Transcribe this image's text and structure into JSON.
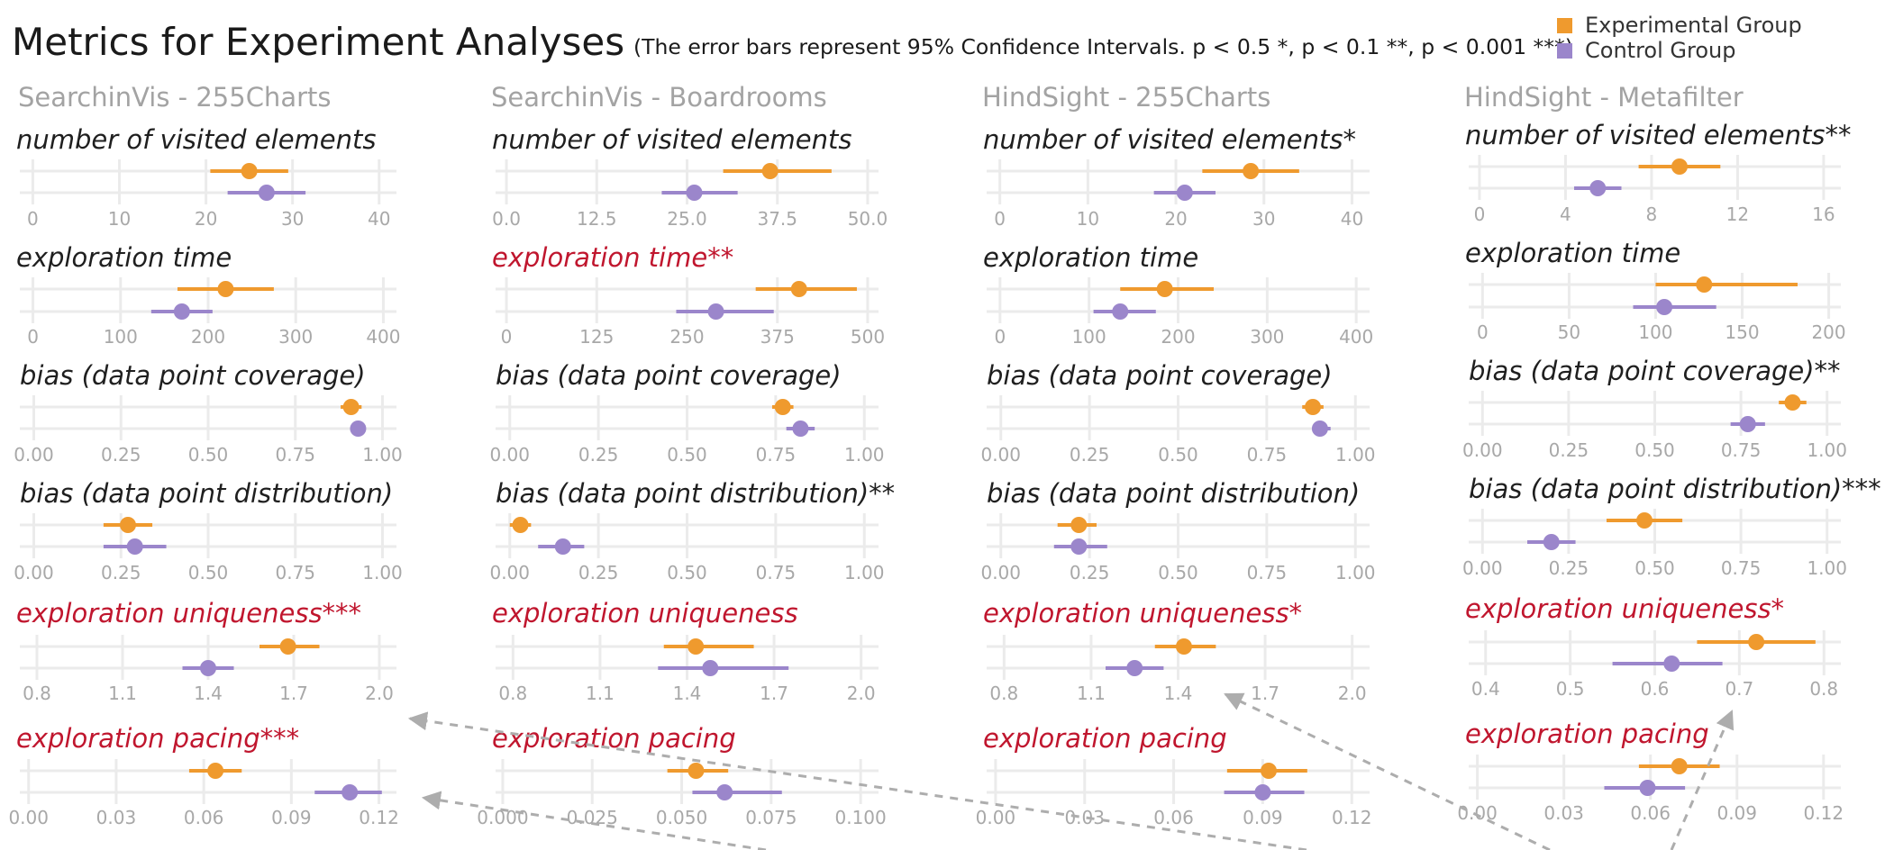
{
  "title": "Metrics for Experiment Analyses",
  "subtitle": "(The error bars represent 95% Confidence Intervals. p < 0.5 *, p < 0.1 **, p < 0.001 ***)",
  "legend": [
    {
      "label": "Experimental Group",
      "color": "#ef9a2e"
    },
    {
      "label": "Control Group",
      "color": "#9b86cb"
    }
  ],
  "colors": {
    "experimental": "#ef9a2e",
    "control": "#9b86cb",
    "highlight_title": "#c0162e",
    "default_title": "#1f1f1f",
    "grid": "#ebebeb",
    "arrow": "#adadad"
  },
  "chart_data": [
    {
      "panel": "SearchinVis - 255Charts",
      "type": "interval",
      "metrics": [
        {
          "title": "number of visited elements",
          "highlight": false,
          "ticks": [
            0,
            10,
            20,
            30,
            40
          ],
          "tick_labels": [
            "0",
            "10",
            "20",
            "30",
            "40"
          ],
          "xlim": [
            -1.5,
            42
          ],
          "experimental": {
            "mean": 25,
            "ci": [
              20.5,
              29.5
            ]
          },
          "control": {
            "mean": 27,
            "ci": [
              22.5,
              31.5
            ]
          }
        },
        {
          "title": "exploration time",
          "highlight": false,
          "ticks": [
            0,
            100,
            200,
            300,
            400
          ],
          "tick_labels": [
            "0",
            "100",
            "200",
            "300",
            "400"
          ],
          "xlim": [
            -15,
            415
          ],
          "experimental": {
            "mean": 220,
            "ci": [
              165,
              275
            ]
          },
          "control": {
            "mean": 170,
            "ci": [
              135,
              205
            ]
          }
        },
        {
          "title": "bias (data  point coverage)",
          "highlight": false,
          "ticks": [
            0,
            0.25,
            0.5,
            0.75,
            1
          ],
          "tick_labels": [
            "0.00",
            "0.25",
            "0.50",
            "0.75",
            "1.00"
          ],
          "xlim": [
            -0.04,
            1.04
          ],
          "experimental": {
            "mean": 0.91,
            "ci": [
              0.88,
              0.94
            ]
          },
          "control": {
            "mean": 0.93,
            "ci": [
              0.91,
              0.95
            ]
          }
        },
        {
          "title": "bias (data point distribution)",
          "highlight": false,
          "ticks": [
            0,
            0.25,
            0.5,
            0.75,
            1
          ],
          "tick_labels": [
            "0.00",
            "0.25",
            "0.50",
            "0.75",
            "1.00"
          ],
          "xlim": [
            -0.04,
            1.04
          ],
          "experimental": {
            "mean": 0.27,
            "ci": [
              0.2,
              0.34
            ]
          },
          "control": {
            "mean": 0.29,
            "ci": [
              0.2,
              0.38
            ]
          }
        },
        {
          "title": "exploration uniqueness***",
          "highlight": true,
          "ticks": [
            0.8,
            1.1,
            1.4,
            1.7,
            2.0
          ],
          "tick_labels": [
            "0.8",
            "1.1",
            "1.4",
            "1.7",
            "2.0"
          ],
          "xlim": [
            0.74,
            2.06
          ],
          "experimental": {
            "mean": 1.68,
            "ci": [
              1.58,
              1.79
            ]
          },
          "control": {
            "mean": 1.4,
            "ci": [
              1.31,
              1.49
            ]
          }
        },
        {
          "title": "exploration pacing***",
          "highlight": true,
          "ticks": [
            0,
            0.03,
            0.06,
            0.09,
            0.12
          ],
          "tick_labels": [
            "0.00",
            "0.03",
            "0.06",
            "0.09",
            "0.12"
          ],
          "xlim": [
            -0.003,
            0.126
          ],
          "experimental": {
            "mean": 0.064,
            "ci": [
              0.055,
              0.073
            ]
          },
          "control": {
            "mean": 0.11,
            "ci": [
              0.098,
              0.121
            ]
          }
        }
      ]
    },
    {
      "panel": "SearchinVis - Boardrooms",
      "type": "interval",
      "metrics": [
        {
          "title": "number of visited elements",
          "highlight": false,
          "ticks": [
            0,
            12.5,
            25,
            37.5,
            50
          ],
          "tick_labels": [
            "0.0",
            "12.5",
            "25.0",
            "37.5",
            "50.0"
          ],
          "xlim": [
            -1.5,
            51.5
          ],
          "experimental": {
            "mean": 36.5,
            "ci": [
              30,
              45
            ]
          },
          "control": {
            "mean": 26,
            "ci": [
              21.5,
              32
            ]
          }
        },
        {
          "title": "exploration time**",
          "highlight": true,
          "ticks": [
            0,
            125,
            250,
            375,
            500
          ],
          "tick_labels": [
            "0",
            "125",
            "250",
            "375",
            "500"
          ],
          "xlim": [
            -15,
            515
          ],
          "experimental": {
            "mean": 405,
            "ci": [
              345,
              485
            ]
          },
          "control": {
            "mean": 290,
            "ci": [
              235,
              370
            ]
          }
        },
        {
          "title": "bias (data point coverage)",
          "highlight": false,
          "ticks": [
            0,
            0.25,
            0.5,
            0.75,
            1
          ],
          "tick_labels": [
            "0.00",
            "0.25",
            "0.50",
            "0.75",
            "1.00"
          ],
          "xlim": [
            -0.04,
            1.04
          ],
          "experimental": {
            "mean": 0.77,
            "ci": [
              0.74,
              0.8
            ]
          },
          "control": {
            "mean": 0.82,
            "ci": [
              0.78,
              0.86
            ]
          }
        },
        {
          "title": "bias (data point distribution)**",
          "highlight": false,
          "ticks": [
            0,
            0.25,
            0.5,
            0.75,
            1
          ],
          "tick_labels": [
            "0.00",
            "0.25",
            "0.50",
            "0.75",
            "1.00"
          ],
          "xlim": [
            -0.04,
            1.04
          ],
          "experimental": {
            "mean": 0.03,
            "ci": [
              0,
              0.06
            ]
          },
          "control": {
            "mean": 0.15,
            "ci": [
              0.08,
              0.21
            ]
          }
        },
        {
          "title": "exploration uniqueness",
          "highlight": true,
          "ticks": [
            0.8,
            1.1,
            1.4,
            1.7,
            2.0
          ],
          "tick_labels": [
            "0.8",
            "1.1",
            "1.4",
            "1.7",
            "2.0"
          ],
          "xlim": [
            0.74,
            2.06
          ],
          "experimental": {
            "mean": 1.43,
            "ci": [
              1.32,
              1.63
            ]
          },
          "control": {
            "mean": 1.48,
            "ci": [
              1.3,
              1.75
            ]
          }
        },
        {
          "title": "exploration pacing",
          "highlight": true,
          "ticks": [
            0,
            0.025,
            0.05,
            0.075,
            0.1
          ],
          "tick_labels": [
            "0.000",
            "0.025",
            "0.050",
            "0.075",
            "0.100"
          ],
          "xlim": [
            -0.002,
            0.105
          ],
          "experimental": {
            "mean": 0.054,
            "ci": [
              0.046,
              0.063
            ]
          },
          "control": {
            "mean": 0.062,
            "ci": [
              0.053,
              0.078
            ]
          }
        }
      ]
    },
    {
      "panel": "HindSight - 255Charts",
      "type": "interval",
      "metrics": [
        {
          "title": "number of visited elements*",
          "highlight": false,
          "ticks": [
            0,
            10,
            20,
            30,
            40
          ],
          "tick_labels": [
            "0",
            "10",
            "20",
            "30",
            "40"
          ],
          "xlim": [
            -1.5,
            42
          ],
          "experimental": {
            "mean": 28.5,
            "ci": [
              23,
              34
            ]
          },
          "control": {
            "mean": 21,
            "ci": [
              17.5,
              24.5
            ]
          }
        },
        {
          "title": "exploration time",
          "highlight": false,
          "ticks": [
            0,
            100,
            200,
            300,
            400
          ],
          "tick_labels": [
            "0",
            "100",
            "200",
            "300",
            "400"
          ],
          "xlim": [
            -15,
            415
          ],
          "experimental": {
            "mean": 185,
            "ci": [
              135,
              240
            ]
          },
          "control": {
            "mean": 135,
            "ci": [
              105,
              175
            ]
          }
        },
        {
          "title": "bias (data point coverage)",
          "highlight": false,
          "ticks": [
            0,
            0.25,
            0.5,
            0.75,
            1
          ],
          "tick_labels": [
            "0.00",
            "0.25",
            "0.50",
            "0.75",
            "1.00"
          ],
          "xlim": [
            -0.04,
            1.04
          ],
          "experimental": {
            "mean": 0.88,
            "ci": [
              0.85,
              0.91
            ]
          },
          "control": {
            "mean": 0.9,
            "ci": [
              0.88,
              0.93
            ]
          }
        },
        {
          "title": "bias (data point distribution)",
          "highlight": false,
          "ticks": [
            0,
            0.25,
            0.5,
            0.75,
            1
          ],
          "tick_labels": [
            "0.00",
            "0.25",
            "0.50",
            "0.75",
            "1.00"
          ],
          "xlim": [
            -0.04,
            1.04
          ],
          "experimental": {
            "mean": 0.22,
            "ci": [
              0.16,
              0.27
            ]
          },
          "control": {
            "mean": 0.22,
            "ci": [
              0.15,
              0.3
            ]
          }
        },
        {
          "title": "exploration uniqueness*",
          "highlight": true,
          "ticks": [
            0.8,
            1.1,
            1.4,
            1.7,
            2.0
          ],
          "tick_labels": [
            "0.8",
            "1.1",
            "1.4",
            "1.7",
            "2.0"
          ],
          "xlim": [
            0.74,
            2.06
          ],
          "experimental": {
            "mean": 1.42,
            "ci": [
              1.32,
              1.53
            ]
          },
          "control": {
            "mean": 1.25,
            "ci": [
              1.15,
              1.35
            ]
          }
        },
        {
          "title": "exploration pacing",
          "highlight": true,
          "ticks": [
            0,
            0.03,
            0.06,
            0.09,
            0.12
          ],
          "tick_labels": [
            "0.00",
            "0.03",
            "0.06",
            "0.09",
            "0.12"
          ],
          "xlim": [
            -0.003,
            0.126
          ],
          "experimental": {
            "mean": 0.092,
            "ci": [
              0.078,
              0.105
            ]
          },
          "control": {
            "mean": 0.09,
            "ci": [
              0.077,
              0.104
            ]
          }
        }
      ]
    },
    {
      "panel": "HindSight - Metafilter",
      "type": "interval",
      "metrics": [
        {
          "title": "number of visited elements**",
          "highlight": false,
          "ticks": [
            0,
            4,
            8,
            12,
            16
          ],
          "tick_labels": [
            "0",
            "4",
            "8",
            "12",
            "16"
          ],
          "xlim": [
            -0.5,
            16.8
          ],
          "experimental": {
            "mean": 9.3,
            "ci": [
              7.4,
              11.2
            ]
          },
          "control": {
            "mean": 5.5,
            "ci": [
              4.4,
              6.6
            ]
          }
        },
        {
          "title": "exploration time",
          "highlight": false,
          "ticks": [
            0,
            50,
            100,
            150,
            200
          ],
          "tick_labels": [
            "0",
            "50",
            "100",
            "150",
            "200"
          ],
          "xlim": [
            -8,
            207
          ],
          "experimental": {
            "mean": 128,
            "ci": [
              100,
              182
            ]
          },
          "control": {
            "mean": 105,
            "ci": [
              87,
              135
            ]
          }
        },
        {
          "title": "bias (data point coverage)**",
          "highlight": false,
          "ticks": [
            0,
            0.25,
            0.5,
            0.75,
            1
          ],
          "tick_labels": [
            "0.00",
            "0.25",
            "0.50",
            "0.75",
            "1.00"
          ],
          "xlim": [
            -0.04,
            1.04
          ],
          "experimental": {
            "mean": 0.9,
            "ci": [
              0.86,
              0.94
            ]
          },
          "control": {
            "mean": 0.77,
            "ci": [
              0.72,
              0.82
            ]
          }
        },
        {
          "title": "bias (data point distribution)***",
          "highlight": false,
          "ticks": [
            0,
            0.25,
            0.5,
            0.75,
            1
          ],
          "tick_labels": [
            "0.00",
            "0.25",
            "0.50",
            "0.75",
            "1.00"
          ],
          "xlim": [
            -0.04,
            1.04
          ],
          "experimental": {
            "mean": 0.47,
            "ci": [
              0.36,
              0.58
            ]
          },
          "control": {
            "mean": 0.2,
            "ci": [
              0.13,
              0.27
            ]
          }
        },
        {
          "title": "exploration uniqueness*",
          "highlight": true,
          "ticks": [
            0.4,
            0.5,
            0.6,
            0.7,
            0.8
          ],
          "tick_labels": [
            "0.4",
            "0.5",
            "0.6",
            "0.7",
            "0.8"
          ],
          "xlim": [
            0.38,
            0.82
          ],
          "experimental": {
            "mean": 0.72,
            "ci": [
              0.65,
              0.79
            ]
          },
          "control": {
            "mean": 0.62,
            "ci": [
              0.55,
              0.68
            ]
          }
        },
        {
          "title": "exploration pacing",
          "highlight": true,
          "ticks": [
            0,
            0.03,
            0.06,
            0.09,
            0.12
          ],
          "tick_labels": [
            "0.00",
            "0.03",
            "0.06",
            "0.09",
            "0.12"
          ],
          "xlim": [
            -0.003,
            0.126
          ],
          "experimental": {
            "mean": 0.07,
            "ci": [
              0.056,
              0.084
            ]
          },
          "control": {
            "mean": 0.059,
            "ci": [
              0.044,
              0.072
            ]
          }
        }
      ]
    }
  ]
}
